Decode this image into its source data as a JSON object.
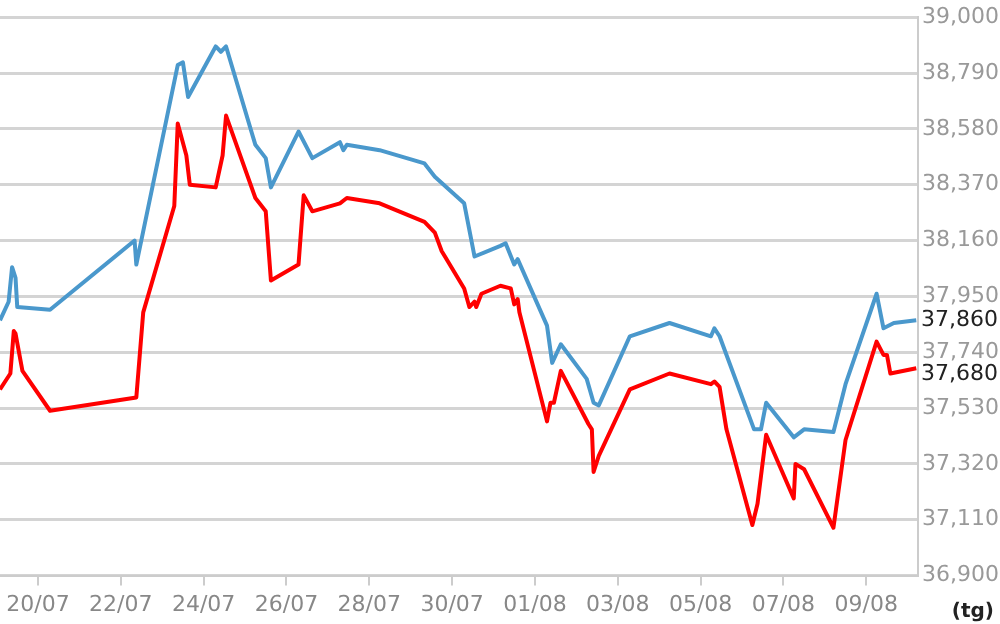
{
  "chart_data": {
    "type": "line",
    "xlim": [
      "--07-19T02:00",
      "--08-10T06:00"
    ],
    "xticks": [
      {
        "value": "--07-20",
        "label": "20/07"
      },
      {
        "value": "--07-22",
        "label": "22/07"
      },
      {
        "value": "--07-24",
        "label": "24/07"
      },
      {
        "value": "--07-26",
        "label": "26/07"
      },
      {
        "value": "--07-28",
        "label": "28/07"
      },
      {
        "value": "--07-30",
        "label": "30/07"
      },
      {
        "value": "--08-01",
        "label": "01/08"
      },
      {
        "value": "--08-03",
        "label": "03/08"
      },
      {
        "value": "--08-05",
        "label": "05/08"
      },
      {
        "value": "--08-07",
        "label": "07/08"
      },
      {
        "value": "--08-09",
        "label": "09/08"
      }
    ],
    "ylim": [
      36900,
      39000
    ],
    "yticks": [
      {
        "value": 36900,
        "label": "36,900"
      },
      {
        "value": 37110,
        "label": "37,110"
      },
      {
        "value": 37320,
        "label": "37,320"
      },
      {
        "value": 37530,
        "label": "37,530"
      },
      {
        "value": 37740,
        "label": "37,740"
      },
      {
        "value": 37950,
        "label": "37,950"
      },
      {
        "value": 38160,
        "label": "38,160"
      },
      {
        "value": 38370,
        "label": "38,370"
      },
      {
        "value": 38580,
        "label": "38,580"
      },
      {
        "value": 38790,
        "label": "38,790"
      },
      {
        "value": 39000,
        "label": "39,000"
      }
    ],
    "grid": "y",
    "legend": false,
    "marker": "none",
    "line_style": "solid",
    "annotations": [
      {
        "text": "37,860",
        "x": "--08-10T05:00",
        "y": 37860
      },
      {
        "text": "37,680",
        "x": "--08-10T05:00",
        "y": 37680
      },
      "(tg)"
    ],
    "series": [
      {
        "color": "#4a98cc",
        "x": [
          "--07-19T02:00",
          "--07-19T07:00",
          "--07-19T09:00",
          "--07-19T11:00",
          "--07-19T12:00",
          "--07-20T07:00",
          "--07-22T08:00",
          "--07-22T09:00",
          "--07-23T09:00",
          "--07-23T12:00",
          "--07-23T15:00",
          "--07-24T07:00",
          "--07-24T10:00",
          "--07-24T13:00",
          "--07-25T06:00",
          "--07-25T12:00",
          "--07-25T15:00",
          "--07-26T07:00",
          "--07-26T15:00",
          "--07-27T07:00",
          "--07-27T09:00",
          "--07-27T11:00",
          "--07-28T06:00",
          "--07-29T08:00",
          "--07-29T14:00",
          "--07-30T07:00",
          "--07-30T13:00",
          "--07-31T04:00",
          "--07-31T07:00",
          "--07-31T12:00",
          "--07-31T14:00",
          "--08-01T07:00",
          "--08-01T10:00",
          "--08-01T15:00",
          "--08-02T06:00",
          "--08-02T10:00",
          "--08-02T13:00",
          "--08-03T07:00",
          "--08-04T06:00",
          "--08-05T06:00",
          "--08-05T08:00",
          "--08-05T11:00",
          "--08-06T07:00",
          "--08-06T11:00",
          "--08-06T14:00",
          "--08-07T06:00",
          "--08-07T12:00",
          "--08-08T05:00",
          "--08-08T12:00",
          "--08-09T06:00",
          "--08-09T10:00",
          "--08-09T16:00",
          "--08-10T05:00"
        ],
        "values": [
          37860,
          37930,
          38060,
          38020,
          37910,
          37900,
          38160,
          38070,
          38820,
          38830,
          38700,
          38890,
          38870,
          38890,
          38520,
          38470,
          38360,
          38570,
          38470,
          38530,
          38500,
          38520,
          38500,
          38450,
          38400,
          38300,
          38100,
          38140,
          38150,
          38070,
          38090,
          37840,
          37700,
          37770,
          37640,
          37550,
          37540,
          37800,
          37850,
          37800,
          37830,
          37800,
          37450,
          37450,
          37550,
          37420,
          37450,
          37440,
          37620,
          37960,
          37830,
          37850,
          37860
        ]
      },
      {
        "color": "#ff0000",
        "x": [
          "--07-19T02:00",
          "--07-19T08:00",
          "--07-19T10:00",
          "--07-19T11:00",
          "--07-19T15:00",
          "--07-20T07:00",
          "--07-22T09:00",
          "--07-22T13:00",
          "--07-23T07:00",
          "--07-23T09:00",
          "--07-23T14:00",
          "--07-23T16:00",
          "--07-24T07:00",
          "--07-24T11:00",
          "--07-24T13:00",
          "--07-25T06:00",
          "--07-25T12:00",
          "--07-25T15:00",
          "--07-26T07:00",
          "--07-26T10:00",
          "--07-26T15:00",
          "--07-27T07:00",
          "--07-27T11:00",
          "--07-28T06:00",
          "--07-29T08:00",
          "--07-29T14:00",
          "--07-29T18:00",
          "--07-30T07:00",
          "--07-30T10:00",
          "--07-30T13:00",
          "--07-30T14:00",
          "--07-30T17:00",
          "--07-31T04:00",
          "--07-31T10:00",
          "--07-31T12:00",
          "--07-31T14:00",
          "--07-31T15:00",
          "--08-01T07:00",
          "--08-01T09:00",
          "--08-01T11:00",
          "--08-01T15:00",
          "--08-02T07:00",
          "--08-02T09:00",
          "--08-02T10:00",
          "--08-02T13:00",
          "--08-03T07:00",
          "--08-04T06:00",
          "--08-05T06:00",
          "--08-05T08:00",
          "--08-05T11:00",
          "--08-05T15:00",
          "--08-06T06:00",
          "--08-06T09:00",
          "--08-06T14:00",
          "--08-07T06:00",
          "--08-07T07:00",
          "--08-07T12:00",
          "--08-08T05:00",
          "--08-08T12:00",
          "--08-09T06:00",
          "--08-09T10:00",
          "--08-09T12:00",
          "--08-09T14:00",
          "--08-10T05:00"
        ],
        "values": [
          37600,
          37660,
          37820,
          37810,
          37670,
          37520,
          37570,
          37890,
          38290,
          38600,
          38480,
          38370,
          38360,
          38480,
          38630,
          38320,
          38270,
          38010,
          38070,
          38330,
          38270,
          38300,
          38320,
          38300,
          38230,
          38190,
          38120,
          37980,
          37910,
          37930,
          37910,
          37960,
          37990,
          37980,
          37920,
          37940,
          37890,
          37480,
          37550,
          37550,
          37670,
          37470,
          37450,
          37290,
          37350,
          37600,
          37660,
          37620,
          37630,
          37610,
          37450,
          37090,
          37170,
          37430,
          37190,
          37320,
          37300,
          37080,
          37410,
          37780,
          37730,
          37730,
          37660,
          37680
        ]
      }
    ]
  }
}
